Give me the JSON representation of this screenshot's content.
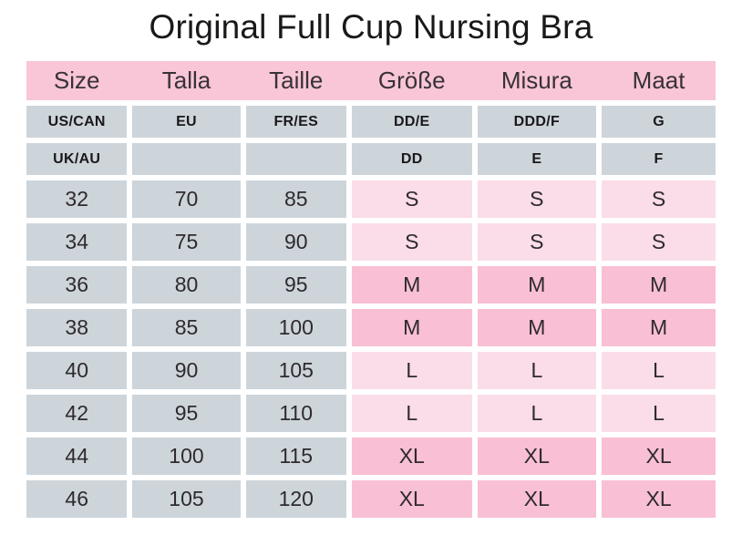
{
  "title": "Original Full Cup Nursing Bra",
  "colors": {
    "header_bg": "#f8c6d6",
    "grey_cell": "#cdd5db",
    "pink_light": "#fbdce9",
    "pink_medium": "#f9bfd4",
    "text_dark": "#2e2a2f",
    "text_bold": "#1a181b",
    "background": "#ffffff"
  },
  "chart_data": {
    "type": "table",
    "title": "Original Full Cup Nursing Bra",
    "columns": [
      "Size",
      "Talla",
      "Taille",
      "Größe",
      "Misura",
      "Maat"
    ],
    "band_rows": [
      {
        "cells": [
          "US/CAN",
          "EU",
          "FR/ES",
          "DD/E",
          "DDD/F",
          "G"
        ]
      },
      {
        "cells": [
          "UK/AU",
          "",
          "",
          "DD",
          "E",
          "F"
        ]
      }
    ],
    "size_rows": [
      {
        "cells": [
          "32",
          "70",
          "85",
          "S",
          "S",
          "S"
        ],
        "highlight": "light"
      },
      {
        "cells": [
          "34",
          "75",
          "90",
          "S",
          "S",
          "S"
        ],
        "highlight": "light"
      },
      {
        "cells": [
          "36",
          "80",
          "95",
          "M",
          "M",
          "M"
        ],
        "highlight": "medium"
      },
      {
        "cells": [
          "38",
          "85",
          "100",
          "M",
          "M",
          "M"
        ],
        "highlight": "medium"
      },
      {
        "cells": [
          "40",
          "90",
          "105",
          "L",
          "L",
          "L"
        ],
        "highlight": "light"
      },
      {
        "cells": [
          "42",
          "95",
          "110",
          "L",
          "L",
          "L"
        ],
        "highlight": "light"
      },
      {
        "cells": [
          "44",
          "100",
          "115",
          "XL",
          "XL",
          "XL"
        ],
        "highlight": "medium"
      },
      {
        "cells": [
          "46",
          "105",
          "120",
          "XL",
          "XL",
          "XL"
        ],
        "highlight": "medium"
      }
    ],
    "legend_position": "none",
    "grid": "white-gaps-between-cells"
  }
}
